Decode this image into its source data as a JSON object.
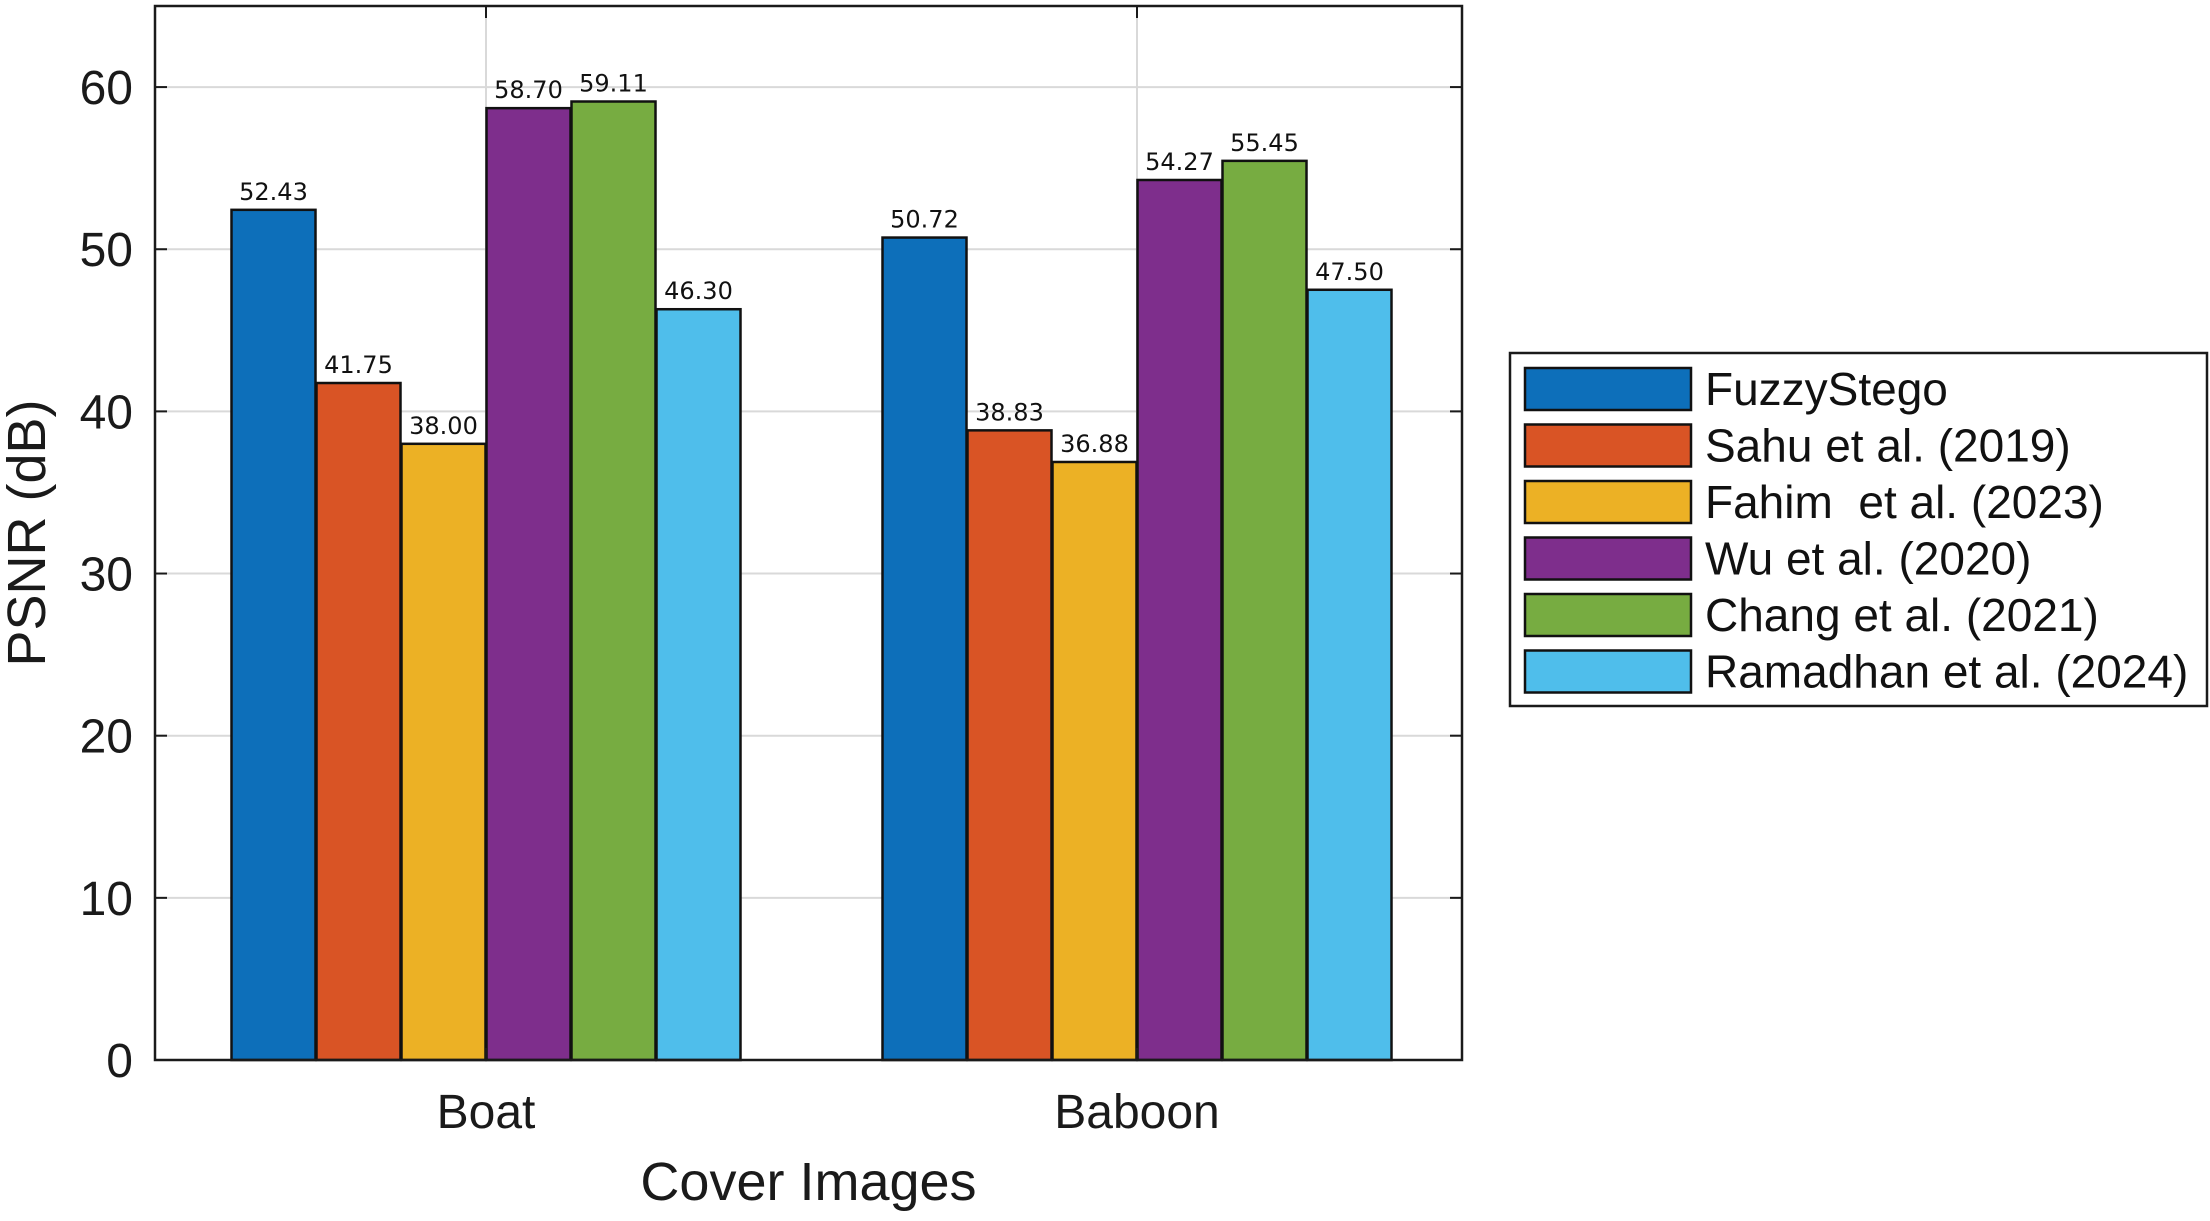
{
  "chart_data": {
    "type": "bar",
    "xlabel": "Cover Images",
    "ylabel": "PSNR (dB)",
    "categories": [
      "Boat",
      "Baboon"
    ],
    "ylim": [
      0,
      65
    ],
    "yticks": [
      0,
      10,
      20,
      30,
      40,
      50,
      60
    ],
    "grid": true,
    "legend_position": "right",
    "value_labels": [
      [
        "52.43",
        "41.75",
        "38.00",
        "58.70",
        "59.11",
        "46.30"
      ],
      [
        "50.72",
        "38.83",
        "36.88",
        "54.27",
        "55.45",
        "47.50"
      ]
    ],
    "series": [
      {
        "name": "FuzzyStego",
        "color": "#0d6fba",
        "values": [
          52.43,
          50.72
        ]
      },
      {
        "name": "Sahu et al. (2019)",
        "color": "#d95425",
        "values": [
          41.75,
          38.83
        ]
      },
      {
        "name": "Fahim  et al. (2023)",
        "color": "#ecb125",
        "values": [
          38.0,
          36.88
        ]
      },
      {
        "name": "Wu et al. (2020)",
        "color": "#7e2e8c",
        "values": [
          58.7,
          54.27
        ]
      },
      {
        "name": "Chang et al. (2021)",
        "color": "#77ac41",
        "values": [
          59.11,
          55.45
        ]
      },
      {
        "name": "Ramadhan et al. (2024)",
        "color": "#4fbeeb",
        "values": [
          46.3,
          47.5
        ]
      }
    ]
  }
}
